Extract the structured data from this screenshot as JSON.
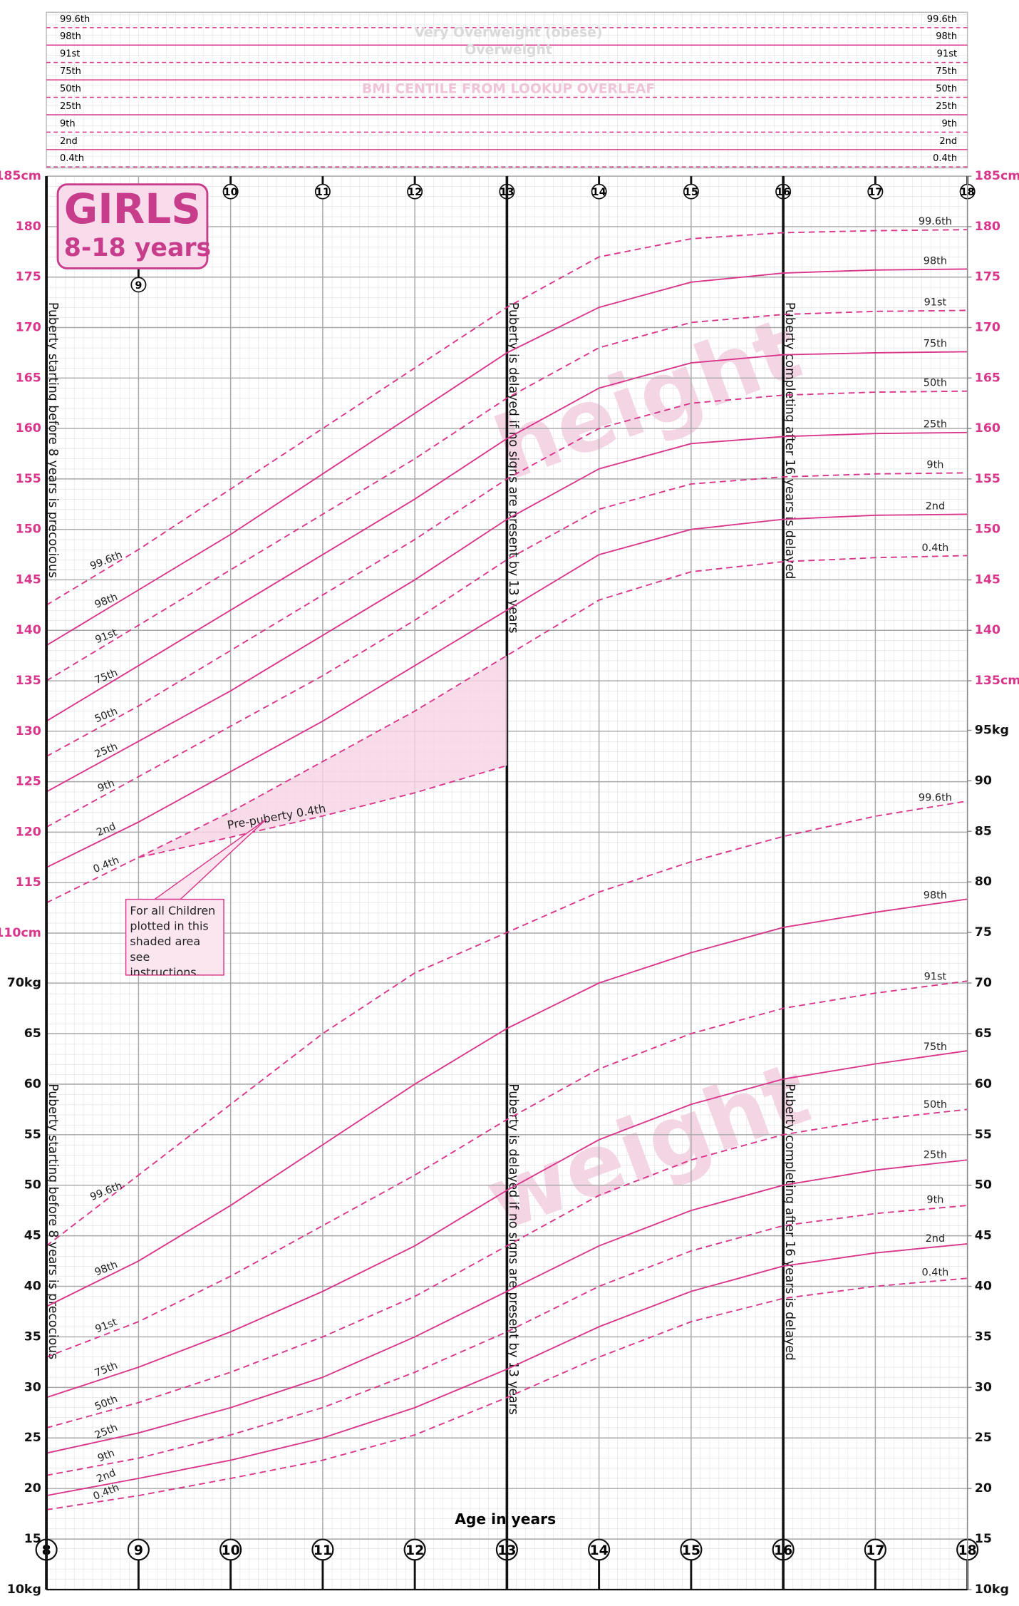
{
  "header": {
    "title": "GIRLS",
    "subtitle": "8-18 years"
  },
  "bmi_panel": {
    "centiles": [
      "99.6th",
      "98th",
      "91st",
      "75th",
      "50th",
      "25th",
      "9th",
      "2nd",
      "0.4th"
    ],
    "labels": [
      "Very Overweight (obese)",
      "Overweight",
      "BMI CENTILE FROM LOOKUP OVERLEAF"
    ]
  },
  "chart_data": [
    {
      "type": "line",
      "title": "height",
      "x": [
        8,
        9,
        10,
        11,
        12,
        13,
        14,
        15,
        16,
        17,
        18
      ],
      "xlim": [
        8,
        18
      ],
      "xticks": [
        9,
        10,
        11,
        12,
        13,
        14,
        15,
        16,
        17,
        18
      ],
      "ylim": [
        110,
        185
      ],
      "yticks": [
        {
          "value": 110,
          "label": "110cm"
        },
        115,
        120,
        125,
        130,
        135,
        140,
        145,
        150,
        155,
        160,
        165,
        170,
        175,
        180,
        {
          "value": 185,
          "label": "185cm"
        }
      ],
      "y2lim": [
        110,
        185
      ],
      "y2ticks": [
        {
          "value": 135,
          "label": "135cm"
        },
        140,
        145,
        150,
        155,
        160,
        165,
        170,
        175,
        180,
        {
          "value": 185,
          "label": "185cm"
        }
      ],
      "grid": true,
      "annotations": [
        {
          "text": "Puberty starting before 8 years is precocious",
          "age": 8
        },
        {
          "text": "Puberty is delayed if no signs are present by 13 years",
          "age": 13
        },
        {
          "text": "Puberty completing after 16 years is delayed",
          "age": 16
        }
      ],
      "callout": "For all Children plotted in this shaded area see instructions.",
      "series": [
        {
          "name": "99.6th",
          "color": "#d8358b",
          "dashed": true,
          "values": [
            142.5,
            148,
            154,
            160,
            166,
            172,
            177,
            178.8,
            179.4,
            179.6,
            179.7
          ]
        },
        {
          "name": "98th",
          "color": "#d8358b",
          "dashed": false,
          "values": [
            138.5,
            144,
            149.5,
            155.5,
            161.5,
            167.5,
            172,
            174.5,
            175.4,
            175.7,
            175.8
          ]
        },
        {
          "name": "91st",
          "color": "#d8358b",
          "dashed": true,
          "values": [
            135,
            140.5,
            146,
            151.5,
            157,
            163,
            168,
            170.5,
            171.3,
            171.6,
            171.7
          ]
        },
        {
          "name": "75th",
          "color": "#d8358b",
          "dashed": false,
          "values": [
            131,
            136.5,
            142,
            147.5,
            153,
            159,
            164,
            166.5,
            167.3,
            167.5,
            167.6
          ]
        },
        {
          "name": "50th",
          "color": "#d8358b",
          "dashed": true,
          "values": [
            127.5,
            132.5,
            138,
            143.5,
            149,
            155,
            160,
            162.5,
            163.3,
            163.6,
            163.7
          ]
        },
        {
          "name": "25th",
          "color": "#d8358b",
          "dashed": false,
          "values": [
            124,
            129,
            134,
            139.5,
            145,
            151,
            156,
            158.5,
            159.2,
            159.5,
            159.6
          ]
        },
        {
          "name": "9th",
          "color": "#d8358b",
          "dashed": true,
          "values": [
            120.5,
            125.5,
            130.5,
            135.5,
            141,
            147,
            152,
            154.5,
            155.2,
            155.5,
            155.6
          ]
        },
        {
          "name": "2nd",
          "color": "#d8358b",
          "dashed": false,
          "values": [
            116.5,
            121,
            126,
            131,
            136.5,
            142,
            147.5,
            150,
            151,
            151.4,
            151.5
          ]
        },
        {
          "name": "0.4th",
          "color": "#d8358b",
          "dashed": true,
          "values": [
            113,
            117.5,
            122,
            127,
            132,
            137.5,
            143,
            145.8,
            146.8,
            147.2,
            147.4
          ]
        },
        {
          "name": "Pre-puberty 0.4th",
          "color": "#d8358b",
          "dashed": true,
          "values": [
            null,
            117.5,
            119.5,
            121.6,
            123.9,
            126.6,
            null,
            null,
            null,
            null,
            null
          ]
        }
      ]
    },
    {
      "type": "line",
      "title": "weight",
      "x_label": "Age in years",
      "x": [
        8,
        9,
        10,
        11,
        12,
        13,
        14,
        15,
        16,
        17,
        18
      ],
      "xlim": [
        8,
        18
      ],
      "xticks": [
        8,
        9,
        10,
        11,
        12,
        13,
        14,
        15,
        16,
        17,
        18
      ],
      "ylim": [
        10,
        95
      ],
      "yticks": [
        {
          "value": 10,
          "label": "10kg"
        },
        15,
        20,
        25,
        30,
        35,
        40,
        45,
        50,
        55,
        60,
        65,
        {
          "value": 70,
          "label": "70kg"
        }
      ],
      "y2lim": [
        10,
        95
      ],
      "y2ticks": [
        {
          "value": 10,
          "label": "10kg"
        },
        15,
        20,
        25,
        30,
        35,
        40,
        45,
        50,
        55,
        60,
        65,
        70,
        75,
        80,
        85,
        90,
        {
          "value": 95,
          "label": "95kg"
        }
      ],
      "grid": true,
      "annotations": [
        {
          "text": "Puberty starting before 8 years is precocious",
          "age": 8
        },
        {
          "text": "Puberty is delayed if no signs are present by 13 years",
          "age": 13
        },
        {
          "text": "Puberty completing after 16 years is delayed",
          "age": 16
        }
      ],
      "series": [
        {
          "name": "99.6th",
          "color": "#d8358b",
          "dashed": true,
          "values": [
            44,
            51,
            58,
            65,
            71,
            75,
            79,
            82,
            84.5,
            86.5,
            88
          ]
        },
        {
          "name": "98th",
          "color": "#d8358b",
          "dashed": false,
          "values": [
            38,
            42.5,
            48,
            54,
            60,
            65.5,
            70,
            73,
            75.5,
            77,
            78.3
          ]
        },
        {
          "name": "91st",
          "color": "#d8358b",
          "dashed": true,
          "values": [
            33,
            36.5,
            41,
            46,
            51,
            56.5,
            61.5,
            65,
            67.5,
            69,
            70.2
          ]
        },
        {
          "name": "75th",
          "color": "#d8358b",
          "dashed": false,
          "values": [
            29,
            32,
            35.5,
            39.5,
            44,
            49.5,
            54.5,
            58,
            60.5,
            62,
            63.3
          ]
        },
        {
          "name": "50th",
          "color": "#d8358b",
          "dashed": true,
          "values": [
            26,
            28.5,
            31.5,
            35,
            39,
            44,
            49,
            52.5,
            55,
            56.5,
            57.5
          ]
        },
        {
          "name": "25th",
          "color": "#d8358b",
          "dashed": false,
          "values": [
            23.5,
            25.5,
            28,
            31,
            35,
            39.5,
            44,
            47.5,
            50,
            51.5,
            52.5
          ]
        },
        {
          "name": "9th",
          "color": "#d8358b",
          "dashed": true,
          "values": [
            21.3,
            23,
            25.3,
            28,
            31.5,
            35.5,
            40,
            43.5,
            46,
            47.2,
            48
          ]
        },
        {
          "name": "2nd",
          "color": "#d8358b",
          "dashed": false,
          "values": [
            19.3,
            21,
            22.8,
            25,
            28,
            31.8,
            36,
            39.5,
            42,
            43.3,
            44.2
          ]
        },
        {
          "name": "0.4th",
          "color": "#d8358b",
          "dashed": true,
          "values": [
            17.9,
            19.3,
            21,
            22.8,
            25.3,
            29,
            33,
            36.5,
            38.8,
            40,
            40.8
          ]
        }
      ]
    }
  ]
}
